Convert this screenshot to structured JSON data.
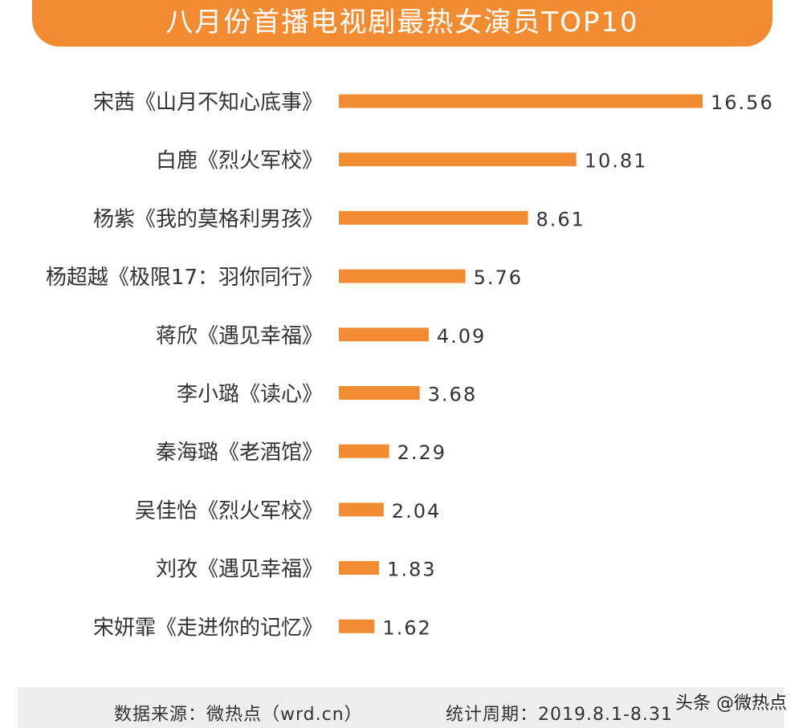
{
  "title": "八月份首播电视剧最热女演员TOP10",
  "colors": {
    "accent": "#f28c32",
    "bar": "#f28c32"
  },
  "chart_data": {
    "type": "bar",
    "orientation": "horizontal",
    "categories": [
      "宋茜《山月不知心底事》",
      "白鹿《烈火军校》",
      "杨紫《我的莫格利男孩》",
      "杨超越《极限17：羽你同行》",
      "蒋欣《遇见幸福》",
      "李小璐《读心》",
      "秦海璐《老酒馆》",
      "吴佳怡《烈火军校》",
      "刘孜《遇见幸福》",
      "宋妍霏《走进你的记忆》"
    ],
    "values": [
      16.56,
      10.81,
      8.61,
      5.76,
      4.09,
      3.68,
      2.29,
      2.04,
      1.83,
      1.62
    ],
    "value_labels": [
      "16.56",
      "10.81",
      "8.61",
      "5.76",
      "4.09",
      "3.68",
      "2.29",
      "2.04",
      "1.83",
      "1.62"
    ],
    "title": "八月份首播电视剧最热女演员TOP10",
    "xlim": [
      0,
      16.56
    ],
    "grid": false,
    "legend": "none"
  },
  "footer": {
    "source": "数据来源：微热点（wrd.cn）",
    "period": "统计周期：2019.8.1-8.31"
  },
  "watermark": "头条 @微热点"
}
